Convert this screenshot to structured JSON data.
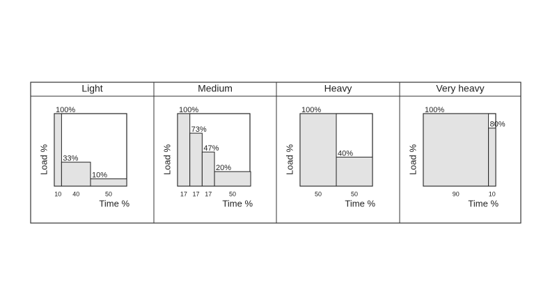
{
  "chart_data": [
    {
      "type": "bar",
      "title": "Light",
      "widths": [
        10,
        40,
        50
      ],
      "values": [
        100,
        33,
        10
      ],
      "value_labels": [
        "100%",
        "33%",
        "10%"
      ],
      "x_label": "Time %",
      "y_label": "Load %",
      "xlim": [
        0,
        100
      ],
      "ylim": [
        0,
        100
      ],
      "color": "#e3e3e3"
    },
    {
      "type": "bar",
      "title": "Medium",
      "widths": [
        17,
        17,
        17,
        50
      ],
      "values": [
        100,
        73,
        47,
        20
      ],
      "value_labels": [
        "100%",
        "73%",
        "47%",
        "20%"
      ],
      "x_label": "Time %",
      "y_label": "Load %",
      "xlim": [
        0,
        100
      ],
      "ylim": [
        0,
        100
      ],
      "color": "#e3e3e3"
    },
    {
      "type": "bar",
      "title": "Heavy",
      "widths": [
        50,
        50
      ],
      "values": [
        100,
        40
      ],
      "value_labels": [
        "100%",
        "40%"
      ],
      "x_label": "Time %",
      "y_label": "Load %",
      "xlim": [
        0,
        100
      ],
      "ylim": [
        0,
        100
      ],
      "color": "#e3e3e3"
    },
    {
      "type": "bar",
      "title": "Very heavy",
      "widths": [
        90,
        10
      ],
      "values": [
        100,
        80
      ],
      "value_labels": [
        "100%",
        "80%"
      ],
      "x_label": "Time %",
      "y_label": "Load %",
      "xlim": [
        0,
        100
      ],
      "ylim": [
        0,
        100
      ],
      "color": "#e3e3e3"
    }
  ]
}
